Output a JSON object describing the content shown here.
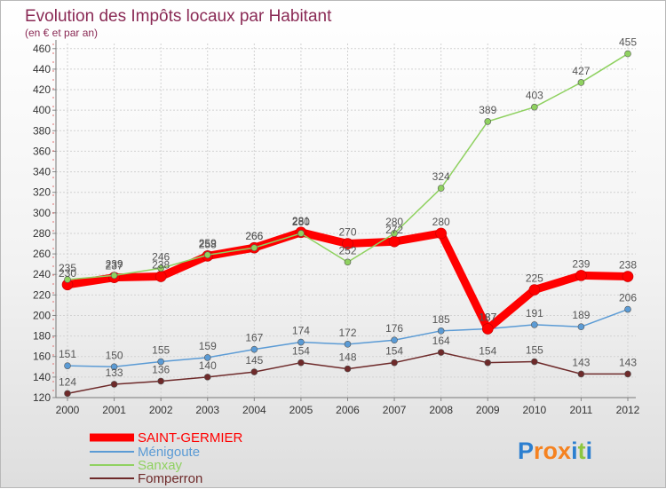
{
  "chart_data": {
    "type": "line",
    "title": "Evolution des Impôts locaux par Habitant",
    "subtitle": "(en € et par an)",
    "x": [
      "2000",
      "2001",
      "2002",
      "2003",
      "2004",
      "2005",
      "2006",
      "2007",
      "2008",
      "2009",
      "2010",
      "2011",
      "2012"
    ],
    "y_ticks": [
      "120",
      "140",
      "160",
      "180",
      "200",
      "220",
      "240",
      "260",
      "280",
      "300",
      "320",
      "340",
      "360",
      "380",
      "400",
      "420",
      "440",
      "460"
    ],
    "ylim": [
      120,
      465
    ],
    "legend_position": "bottom-left",
    "series": [
      {
        "name": "SAINT-GERMIER",
        "color": "#ff0000",
        "values": [
          230,
          237,
          238,
          258,
          266,
          281,
          270,
          272,
          280,
          187,
          225,
          239,
          238
        ],
        "labels": [
          "230",
          "237",
          "238",
          "258",
          "266",
          "281",
          "270",
          "272",
          "280",
          "187",
          "225",
          "239",
          "238"
        ]
      },
      {
        "name": "Ménigoute",
        "color": "#5b9bd5",
        "values": [
          151,
          150,
          155,
          159,
          167,
          174,
          172,
          176,
          185,
          187,
          191,
          189,
          206
        ],
        "labels": [
          "151",
          "150",
          "155",
          "159",
          "167",
          "174",
          "172",
          "176",
          "185",
          "187",
          "191",
          "189",
          "206"
        ]
      },
      {
        "name": "Sanxay",
        "color": "#8fd160",
        "values": [
          235,
          239,
          246,
          259,
          266,
          280,
          252,
          280,
          324,
          389,
          403,
          427,
          455
        ],
        "labels": [
          "235",
          "239",
          "246",
          "259",
          "266",
          "280",
          "252",
          "280",
          "324",
          "389",
          "403",
          "427",
          "455"
        ]
      },
      {
        "name": "Fomperron",
        "color": "#6e2a2a",
        "values": [
          124,
          133,
          136,
          140,
          145,
          154,
          148,
          154,
          164,
          154,
          155,
          143,
          143
        ],
        "labels": [
          "124",
          "133",
          "136",
          "140",
          "145",
          "154",
          "148",
          "154",
          "164",
          "154",
          "155",
          "143",
          "143"
        ]
      }
    ]
  },
  "brand": {
    "letters": [
      "P",
      "r",
      "o",
      "x",
      "i",
      "t",
      "i"
    ],
    "colors": [
      "#2c7fd0",
      "#f58220",
      "#f58220",
      "#f58220",
      "#2c7fd0",
      "#8dc63f",
      "#2c7fd0"
    ]
  }
}
